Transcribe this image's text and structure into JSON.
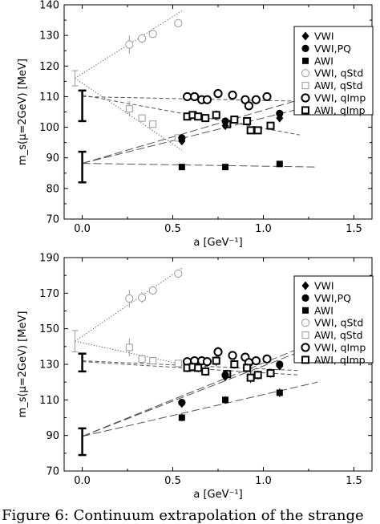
{
  "caption": "Figure 6: Continuum extrapolation of the strange",
  "chart_data": [
    {
      "type": "scatter",
      "xlabel": "a [GeV⁻¹]",
      "ylabel": "m_s(μ=2GeV) [MeV]",
      "xlim": [
        -0.1,
        1.6
      ],
      "ylim": [
        70,
        140
      ],
      "xticks": [
        0,
        0.5,
        1,
        1.5
      ],
      "xtick_labels": [
        "0.0",
        "0.5",
        "1.0",
        "1.5"
      ],
      "yticks": [
        70,
        80,
        90,
        100,
        110,
        120,
        130,
        140
      ],
      "legend_position": "top-right",
      "legend": [
        "VWI",
        "VWI,PQ",
        "AWI",
        "VWI, qStd",
        "AWI, qStd",
        "VWI, qImp",
        "AWI, qImp"
      ],
      "series": [
        {
          "name": "VWI, qStd",
          "marker": "circle-open-thin",
          "color": "#999999",
          "x": [
            0.26,
            0.33,
            0.39,
            0.53
          ],
          "y": [
            127,
            129,
            130.5,
            134
          ],
          "err": [
            3,
            1.5,
            1.2,
            1.2
          ]
        },
        {
          "name": "AWI, qStd",
          "marker": "square-open-thin",
          "color": "#999999",
          "x": [
            0.26,
            0.33,
            0.39,
            0.53
          ],
          "y": [
            106,
            103,
            101,
            96.5
          ],
          "err": [
            2.5,
            1.2,
            1.0,
            0.8
          ]
        },
        {
          "name": "VWI, qImp",
          "marker": "circle-open-thick",
          "color": "#000000",
          "x": [
            0.58,
            0.62,
            0.66,
            0.69,
            0.75,
            0.83,
            0.9,
            0.92,
            0.96,
            1.02
          ],
          "y": [
            110,
            110,
            109,
            109,
            111,
            110.5,
            109,
            107,
            109,
            110
          ],
          "err": [
            1.2,
            1.2,
            1.0,
            1.0,
            1.5,
            1.2,
            1.2,
            1.2,
            1.0,
            1.0
          ]
        },
        {
          "name": "AWI, qImp",
          "marker": "square-open-thick",
          "color": "#000000",
          "x": [
            0.58,
            0.61,
            0.64,
            0.68,
            0.74,
            0.8,
            0.84,
            0.91,
            0.93,
            0.97,
            1.04
          ],
          "y": [
            103.5,
            104,
            103.5,
            103,
            104,
            101,
            102.5,
            102,
            99,
            99,
            100.5
          ],
          "err": [
            1.0,
            1.0,
            1.0,
            1.0,
            1.5,
            1.0,
            1.0,
            1.2,
            1.0,
            1.0,
            1.0
          ]
        },
        {
          "name": "VWI",
          "marker": "diamond-filled",
          "color": "#000000",
          "x": [
            0.55,
            0.79,
            1.09
          ],
          "y": [
            95.5,
            100.5,
            103
          ],
          "err": [
            1.0,
            1.0,
            1.0
          ]
        },
        {
          "name": "VWI,PQ",
          "marker": "circle-filled",
          "color": "#000000",
          "x": [
            0.55,
            0.79,
            1.09
          ],
          "y": [
            96.5,
            102,
            104.5
          ],
          "err": [
            1.0,
            1.0,
            1.0
          ]
        },
        {
          "name": "AWI",
          "marker": "square-filled",
          "color": "#000000",
          "x": [
            0.55,
            0.79,
            1.09
          ],
          "y": [
            87,
            87,
            88
          ],
          "err": [
            0.8,
            0.8,
            0.8
          ]
        }
      ],
      "continuum_points": [
        {
          "x": -0.04,
          "y": 116,
          "err": 2.5,
          "color": "#999999",
          "width": "thin"
        },
        {
          "x": 0.0,
          "y": 107,
          "err": 5,
          "color": "#000000",
          "width": "thick"
        },
        {
          "x": 0.0,
          "y": 87,
          "err": 5,
          "color": "#000000",
          "width": "thick"
        }
      ],
      "fit_lines": [
        {
          "style": "dotted",
          "x": [
            -0.04,
            0.55
          ],
          "y": [
            116,
            138
          ]
        },
        {
          "style": "dotted",
          "x": [
            -0.04,
            0.55
          ],
          "y": [
            116,
            92.5
          ]
        },
        {
          "style": "dashed",
          "x": [
            0.0,
            1.2
          ],
          "y": [
            110,
            108.5
          ]
        },
        {
          "style": "dashed",
          "x": [
            0.0,
            1.2
          ],
          "y": [
            110.5,
            97.5
          ]
        },
        {
          "style": "longdash",
          "x": [
            0.0,
            1.2
          ],
          "y": [
            88.2,
            106
          ]
        },
        {
          "style": "longdash",
          "x": [
            0.0,
            1.2
          ],
          "y": [
            88.2,
            109
          ]
        },
        {
          "style": "longdash",
          "x": [
            0.0,
            1.3
          ],
          "y": [
            88.2,
            87
          ]
        }
      ]
    },
    {
      "type": "scatter",
      "xlabel": "a [GeV⁻¹]",
      "ylabel": "m_s(μ=2GeV) [MeV]",
      "xlim": [
        -0.1,
        1.6
      ],
      "ylim": [
        70,
        190
      ],
      "xticks": [
        0,
        0.5,
        1,
        1.5
      ],
      "xtick_labels": [
        "0.0",
        "0.5",
        "1.0",
        "1.5"
      ],
      "yticks": [
        70,
        90,
        110,
        130,
        150,
        170,
        190
      ],
      "legend_position": "top-right",
      "legend": [
        "VWI",
        "VWI,PQ",
        "AWI",
        "VWI, qStd",
        "AWI, qStd",
        "VWI, qImp",
        "AWI, qImp"
      ],
      "series": [
        {
          "name": "VWI, qStd",
          "marker": "circle-open-thin",
          "color": "#999999",
          "x": [
            0.26,
            0.33,
            0.39,
            0.53
          ],
          "y": [
            167,
            167.5,
            171.5,
            181
          ],
          "err": [
            5,
            3,
            2.5,
            2.5
          ]
        },
        {
          "name": "AWI, qStd",
          "marker": "square-open-thin",
          "color": "#999999",
          "x": [
            0.26,
            0.33,
            0.39,
            0.53
          ],
          "y": [
            139.5,
            133,
            132,
            130.5
          ],
          "err": [
            5,
            2.5,
            1.5,
            1.5
          ]
        },
        {
          "name": "VWI, qImp",
          "marker": "circle-open-thick",
          "color": "#000000",
          "x": [
            0.58,
            0.62,
            0.66,
            0.69,
            0.75,
            0.83,
            0.9,
            0.92,
            0.96,
            1.02
          ],
          "y": [
            131.5,
            132,
            132,
            131.5,
            137,
            135,
            134,
            131,
            132,
            133
          ],
          "err": [
            2.5,
            2.5,
            2.5,
            2.5,
            3,
            2.5,
            2.5,
            2.5,
            2.5,
            2.5
          ]
        },
        {
          "name": "AWI, qImp",
          "marker": "square-open-thick",
          "color": "#000000",
          "x": [
            0.58,
            0.61,
            0.64,
            0.68,
            0.74,
            0.8,
            0.84,
            0.91,
            0.93,
            0.97,
            1.04
          ],
          "y": [
            128,
            128.5,
            128,
            126,
            132,
            124.5,
            130,
            128,
            122.5,
            124,
            125
          ],
          "err": [
            2.5,
            2.5,
            2.5,
            2.5,
            3,
            2.5,
            2.5,
            2.5,
            3,
            2.5,
            2.5
          ]
        },
        {
          "name": "VWI",
          "marker": "diamond-filled",
          "color": "#000000",
          "x": [
            0.55,
            0.79,
            1.09
          ],
          "y": [
            108,
            123,
            129
          ],
          "err": [
            2,
            2,
            2
          ]
        },
        {
          "name": "VWI,PQ",
          "marker": "circle-filled",
          "color": "#000000",
          "x": [
            0.55,
            0.79,
            1.09
          ],
          "y": [
            108.5,
            124,
            130
          ],
          "err": [
            2,
            2,
            2
          ]
        },
        {
          "name": "AWI",
          "marker": "square-filled",
          "color": "#000000",
          "x": [
            0.55,
            0.79,
            1.09
          ],
          "y": [
            100,
            110,
            114
          ],
          "err": [
            2,
            2,
            2.5
          ]
        }
      ],
      "continuum_points": [
        {
          "x": -0.04,
          "y": 143,
          "err": 6,
          "color": "#999999",
          "width": "thin"
        },
        {
          "x": 0.0,
          "y": 131,
          "err": 5,
          "color": "#000000",
          "width": "thick"
        },
        {
          "x": 0.0,
          "y": 86.5,
          "err": 7.5,
          "color": "#000000",
          "width": "thick"
        }
      ],
      "fit_lines": [
        {
          "style": "dotted",
          "x": [
            -0.04,
            0.55
          ],
          "y": [
            143,
            184
          ]
        },
        {
          "style": "dotted",
          "x": [
            -0.04,
            0.55
          ],
          "y": [
            143,
            130
          ]
        },
        {
          "style": "dashed",
          "x": [
            0.0,
            1.2
          ],
          "y": [
            132,
            126.5
          ]
        },
        {
          "style": "dashed",
          "x": [
            0.0,
            1.2
          ],
          "y": [
            131.5,
            124
          ]
        },
        {
          "style": "longdash",
          "x": [
            0.0,
            1.2
          ],
          "y": [
            89.5,
            137
          ]
        },
        {
          "style": "longdash",
          "x": [
            0.0,
            1.2
          ],
          "y": [
            89.5,
            139
          ]
        },
        {
          "style": "longdash",
          "x": [
            0.0,
            1.3
          ],
          "y": [
            89.5,
            120
          ]
        }
      ]
    }
  ]
}
